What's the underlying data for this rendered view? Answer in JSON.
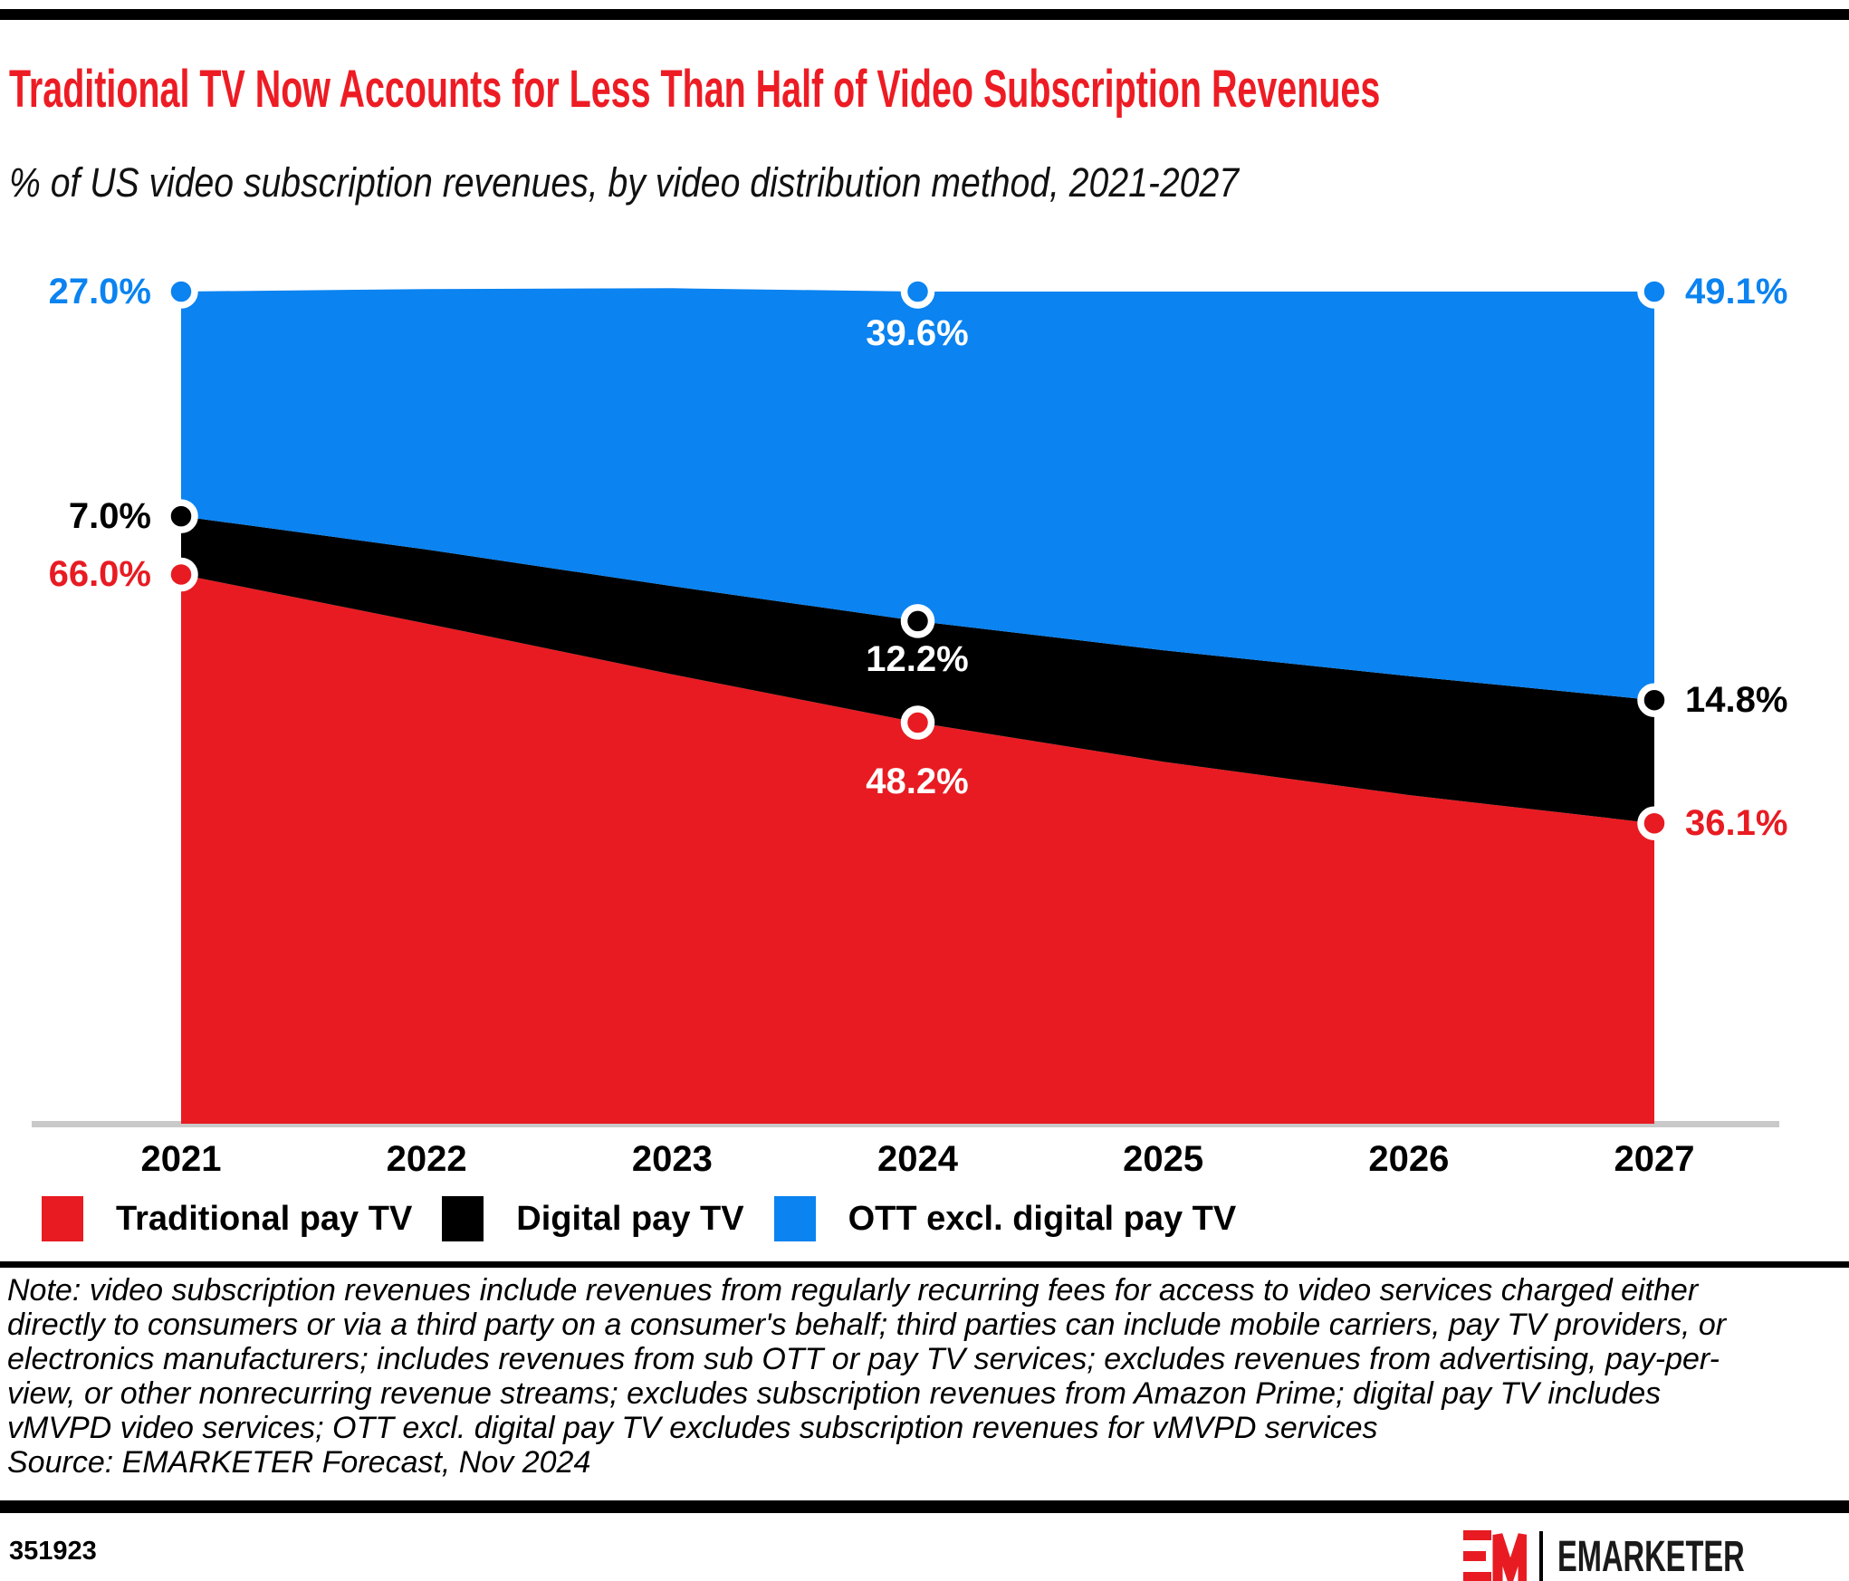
{
  "header": {
    "title": "Traditional TV Now Accounts for Less Than Half of Video Subscription Revenues",
    "subtitle": "% of US video subscription revenues, by video distribution method, 2021-2027"
  },
  "chart_data": {
    "type": "area",
    "stacked": true,
    "title": "Traditional TV Now Accounts for Less Than Half of Video Subscription Revenues",
    "unit": "%",
    "ylim": [
      0,
      100
    ],
    "grid": false,
    "legend_position": "bottom",
    "x": [
      2021,
      2022,
      2023,
      2024,
      2025,
      2026,
      2027
    ],
    "x_ticks": [
      "2021",
      "2022",
      "2023",
      "2024",
      "2025",
      "2026",
      "2027"
    ],
    "series": [
      {
        "key": "traditional",
        "name": "Traditional pay TV",
        "color": "#e81b22",
        "values": [
          66.0,
          60.1,
          54.0,
          48.2,
          43.5,
          39.5,
          36.1
        ]
      },
      {
        "key": "digital",
        "name": "Digital pay TV",
        "color": "#000000",
        "values": [
          7.0,
          8.9,
          10.6,
          12.2,
          13.4,
          14.3,
          14.8
        ]
      },
      {
        "key": "ott",
        "name": "OTT excl. digital pay TV",
        "color": "#0b83f0",
        "values": [
          27.0,
          31.3,
          35.8,
          39.6,
          43.1,
          46.2,
          49.1
        ]
      }
    ],
    "labeled_years": [
      2021,
      2024,
      2027
    ],
    "point_labels": {
      "y2021": {
        "ott": "27.0%",
        "digital": "7.0%",
        "traditional": "66.0%"
      },
      "y2024": {
        "ott": "39.6%",
        "digital": "12.2%",
        "traditional": "48.2%"
      },
      "y2027": {
        "ott": "49.1%",
        "digital": "14.8%",
        "traditional": "36.1%"
      }
    }
  },
  "note": {
    "text": "Note: video subscription revenues include revenues from regularly recurring fees for access to video services charged either directly to consumers or via a third party on a consumer's behalf; third parties can include mobile carriers, pay TV providers, or electronics manufacturers; includes revenues from sub OTT or pay TV services; excludes revenues from advertising, pay-per-view, or other nonrecurring revenue streams; excludes subscription revenues from Amazon Prime; digital pay TV includes vMVPD video services; OTT excl. digital pay TV excludes subscription revenues for vMVPD services",
    "source": "Source: EMARKETER Forecast, Nov 2024"
  },
  "footer": {
    "chart_id": "351923",
    "brand": "EMARKETER"
  },
  "colors": {
    "title_red": "#ed1c24",
    "traditional_red": "#e81b22",
    "digital_black": "#000000",
    "ott_blue": "#0b83f0",
    "axis_line_gray": "#c9c9c9",
    "bar_black": "#000000"
  }
}
